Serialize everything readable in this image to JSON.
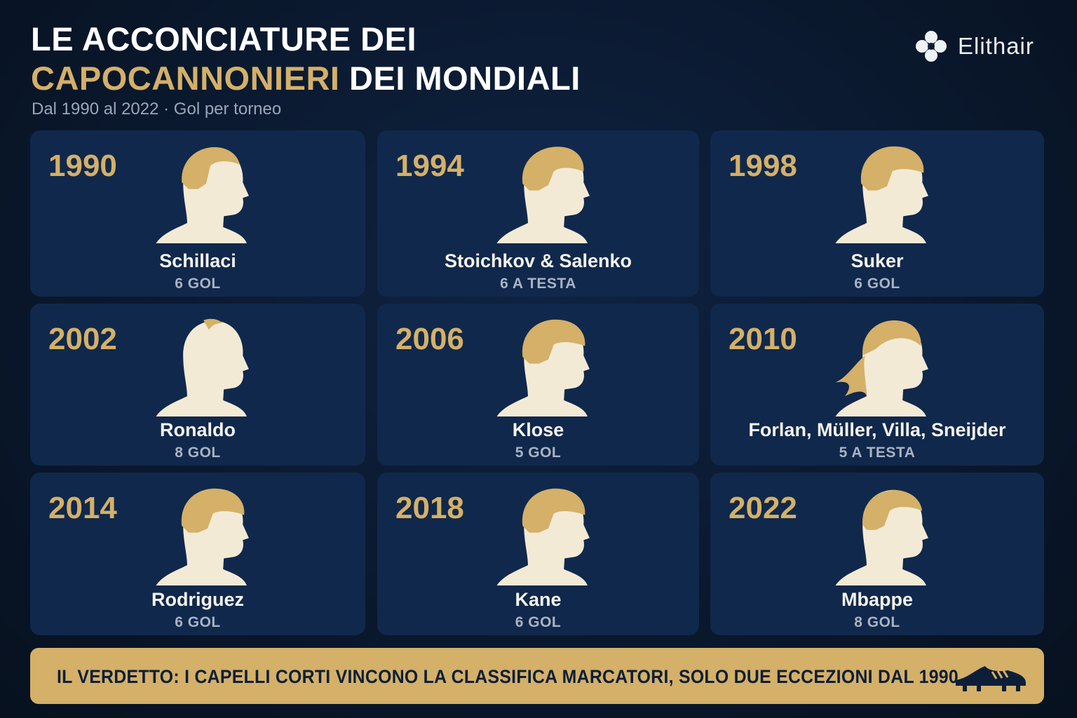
{
  "header": {
    "title_line1": "LE ACCONCIATURE DEI",
    "title_highlight": "CAPOCANNONIERI",
    "title_rest": "DEI MONDIALI",
    "subtitle": "Dal 1990 al 2022 · Gol per torneo",
    "brand": "Elithair"
  },
  "cards": [
    {
      "year": "1990",
      "name": "Schillaci",
      "goals": "6 GOL"
    },
    {
      "year": "1994",
      "name": "Stoichkov & Salenko",
      "goals": "6 A TESTA"
    },
    {
      "year": "1998",
      "name": "Suker",
      "goals": "6 GOL"
    },
    {
      "year": "2002",
      "name": "Ronaldo",
      "goals": "8 GOL"
    },
    {
      "year": "2006",
      "name": "Klose",
      "goals": "5 GOL"
    },
    {
      "year": "2010",
      "name": "Forlan, Müller, Villa, Sneijder",
      "goals": "5 A TESTA"
    },
    {
      "year": "2014",
      "name": "Rodriguez",
      "goals": "6 GOL"
    },
    {
      "year": "2018",
      "name": "Kane",
      "goals": "6 GOL"
    },
    {
      "year": "2022",
      "name": "Mbappe",
      "goals": "8 GOL"
    }
  ],
  "footer": {
    "verdict": "IL VERDETTO: I CAPELLI CORTI VINCONO LA CLASSIFICA MARCATORI, SOLO DUE ECCEZIONI DAL 1990"
  }
}
